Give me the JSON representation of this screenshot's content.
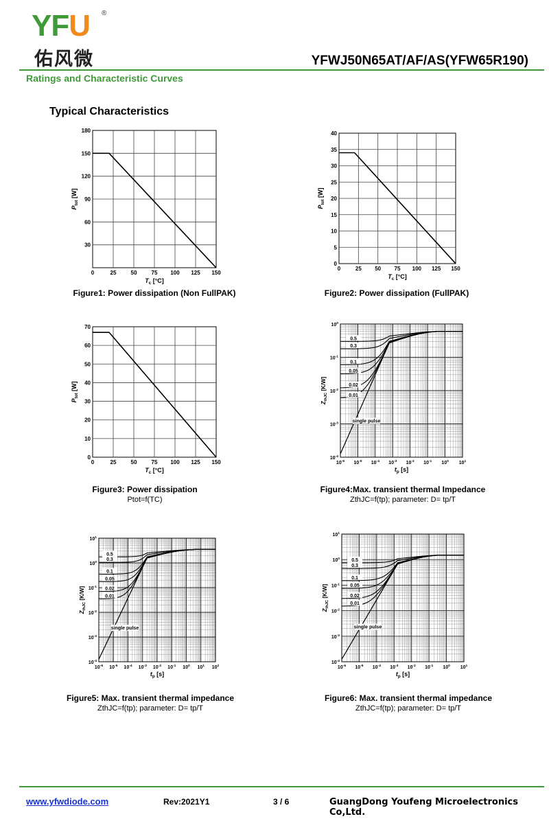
{
  "header": {
    "logo_letters": {
      "y": "Y",
      "f": "F",
      "u": "U"
    },
    "logo_reg": "®",
    "logo_chinese": "佑风微",
    "part_number": "YFWJ50N65AT/AF/AS(YFW65R190)",
    "section_title": "Ratings and Characteristic Curves",
    "heading": "Typical Characteristics",
    "brand_green": "#3f9a38",
    "brand_orange": "#f08a1c"
  },
  "figures": [
    {
      "caption": "Figure1: Power dissipation (Non FullPAK)",
      "subcaption": ""
    },
    {
      "caption": "Figure2: Power dissipation (FullPAK)",
      "subcaption": ""
    },
    {
      "caption": "Figure3: Power  dissipation",
      "subcaption": "Ptot=f(TC)"
    },
    {
      "caption": "Figure4:Max. transient thermal Impedance",
      "subcaption": "ZthJC=f(tp); parameter: D= tp/T"
    },
    {
      "caption": "Figure5: Max. transient thermal impedance",
      "subcaption": "ZthJC=f(tp); parameter: D= tp/T"
    },
    {
      "caption": "Figure6: Max. transient thermal impedance",
      "subcaption": "ZthJC=f(tp); parameter: D= tp/T"
    }
  ],
  "chart_data": [
    {
      "type": "line",
      "xlabel": "Tc [°C]",
      "ylabel": "Ptot [W]",
      "xlim": [
        0,
        150
      ],
      "ylim": [
        0,
        180
      ],
      "xticks": [
        0,
        25,
        50,
        75,
        100,
        125,
        150
      ],
      "yticks": [
        30,
        60,
        90,
        120,
        150,
        180
      ],
      "grid": true,
      "series": [
        {
          "x": [
            0,
            20,
            150
          ],
          "y": [
            150,
            150,
            0
          ]
        }
      ]
    },
    {
      "type": "line",
      "xlabel": "Tc [°C]",
      "ylabel": "Ptot [W]",
      "xlim": [
        0,
        150
      ],
      "ylim": [
        0,
        40
      ],
      "xticks": [
        0,
        25,
        50,
        75,
        100,
        125,
        150
      ],
      "yticks": [
        0,
        5,
        10,
        15,
        20,
        25,
        30,
        35,
        40
      ],
      "grid": true,
      "series": [
        {
          "x": [
            0,
            20,
            150
          ],
          "y": [
            34,
            34,
            0
          ]
        }
      ]
    },
    {
      "type": "line",
      "xlabel": "Tc [°C]",
      "ylabel": "Ptot [W]",
      "xlim": [
        0,
        150
      ],
      "ylim": [
        0,
        70
      ],
      "xticks": [
        0,
        25,
        50,
        75,
        100,
        125,
        150
      ],
      "yticks": [
        0,
        10,
        20,
        30,
        40,
        50,
        60,
        70
      ],
      "grid": true,
      "series": [
        {
          "x": [
            0,
            20,
            150
          ],
          "y": [
            67,
            67,
            0
          ]
        }
      ]
    },
    {
      "type": "line",
      "log_x": true,
      "log_y": true,
      "xlabel": "tp [s]",
      "ylabel": "ZthJC [K/W]",
      "xlim_exp": [
        -6,
        1
      ],
      "ylim_exp": [
        -4,
        0
      ],
      "xtick_labels": [
        "10-6",
        "10-5",
        "10-4",
        "10-3",
        "10-2",
        "10-1",
        "100",
        "101"
      ],
      "ytick_labels": [
        "100",
        "10-1",
        "10-2",
        "10-3",
        "10-4"
      ],
      "plateau": 0.6,
      "pulse_slope_exp": [
        -6,
        -3.2
      ],
      "labels": [
        "0.5",
        "0.3",
        "0.1",
        "0.05",
        "0.02",
        "0.01",
        "single pulse"
      ],
      "duty_levels": [
        0.3,
        0.18,
        0.06,
        0.032,
        0.012,
        0.006
      ]
    },
    {
      "type": "line",
      "log_x": true,
      "log_y": true,
      "xlabel": "tp [s]",
      "ylabel": "ZthJC [K/W]",
      "xlim_exp": [
        -6,
        2
      ],
      "ylim_exp": [
        -4,
        1
      ],
      "xtick_labels": [
        "10-6",
        "10-5",
        "10-4",
        "10-3",
        "10-2",
        "10-1",
        "100",
        "101",
        "102"
      ],
      "ytick_labels": [
        "101",
        "100",
        "10-1",
        "10-2",
        "10-3",
        "10-4"
      ],
      "plateau": 3.5,
      "pulse_slope_exp": [
        -6,
        -2.7
      ],
      "labels": [
        "0.5",
        "0.3",
        "0.1",
        "0.05",
        "0.02",
        "0.01",
        "single pulse"
      ],
      "duty_levels": [
        1.75,
        1.05,
        0.35,
        0.175,
        0.07,
        0.035
      ]
    },
    {
      "type": "line",
      "log_x": true,
      "log_y": true,
      "xlabel": "tp [s]",
      "ylabel": "ZthJC [K/W]",
      "xlim_exp": [
        -6,
        1
      ],
      "ylim_exp": [
        -4,
        1
      ],
      "xtick_labels": [
        "10-6",
        "10-5",
        "10-4",
        "10-3",
        "10-2",
        "10-1",
        "100",
        "101"
      ],
      "ytick_labels": [
        "101",
        "100",
        "10-1",
        "10-2",
        "10-3",
        "10-4"
      ],
      "plateau": 1.5,
      "pulse_slope_exp": [
        -6,
        -2.8
      ],
      "labels": [
        "0.5",
        "0.3",
        "0.1",
        "0.05",
        "0.02",
        "0.01",
        "single pulse"
      ],
      "duty_levels": [
        0.75,
        0.45,
        0.15,
        0.075,
        0.03,
        0.015
      ]
    }
  ],
  "footer": {
    "url": "www.yfwdiode.com",
    "rev": "Rev:2021Y1",
    "page": "3 / 6",
    "company": "GuangDong Youfeng Microelectronics Co,Ltd."
  }
}
